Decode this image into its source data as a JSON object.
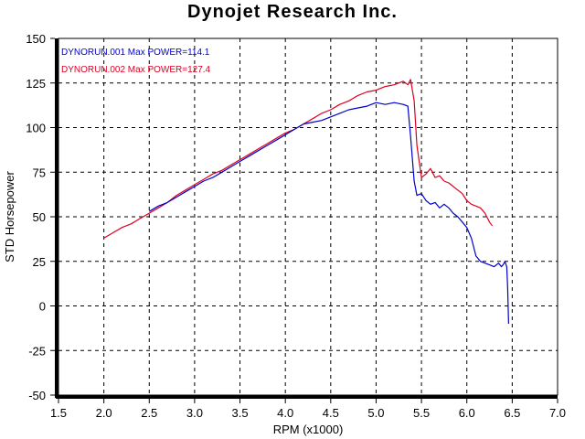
{
  "title": "Dynojet Research Inc.",
  "chart_data": {
    "type": "line",
    "title": "Dynojet Research Inc.",
    "xlabel": "RPM (x1000)",
    "ylabel": "STD Horsepower",
    "xlim": [
      1.5,
      7.0
    ],
    "ylim": [
      -50,
      150
    ],
    "xticks": [
      "1.5",
      "2.0",
      "2.5",
      "3.0",
      "3.5",
      "4.0",
      "4.5",
      "5.0",
      "5.5",
      "6.0",
      "6.5",
      "7.0"
    ],
    "yticks": [
      "-50",
      "-25",
      "0",
      "25",
      "50",
      "75",
      "100",
      "125",
      "150"
    ],
    "grid": true,
    "legend_position": "top-left",
    "series": [
      {
        "name": "DYNORUN.001",
        "legend_label": "DYNORUN.001  Max POWER=114.1",
        "color": "#0000cc",
        "x": [
          2.5,
          2.6,
          2.7,
          2.8,
          2.9,
          3.0,
          3.1,
          3.2,
          3.3,
          3.4,
          3.5,
          3.6,
          3.7,
          3.8,
          3.9,
          4.0,
          4.1,
          4.2,
          4.3,
          4.4,
          4.5,
          4.6,
          4.7,
          4.8,
          4.9,
          5.0,
          5.1,
          5.2,
          5.3,
          5.35,
          5.38,
          5.42,
          5.45,
          5.5,
          5.55,
          5.6,
          5.65,
          5.7,
          5.75,
          5.8,
          5.85,
          5.9,
          5.95,
          6.0,
          6.05,
          6.1,
          6.15,
          6.2,
          6.25,
          6.3,
          6.35,
          6.38,
          6.4,
          6.42,
          6.44,
          6.45,
          6.46
        ],
        "y": [
          53,
          56,
          58,
          61,
          64,
          67,
          70,
          72,
          75,
          78,
          81,
          84,
          87,
          90,
          93,
          96,
          99,
          102,
          103,
          104,
          106,
          108,
          110,
          111,
          112,
          114,
          113,
          114,
          113,
          112,
          95,
          70,
          62,
          63,
          59,
          57,
          58,
          55,
          57,
          55,
          52,
          50,
          47,
          44,
          38,
          28,
          25,
          24,
          23,
          22,
          24,
          22,
          23,
          25,
          22,
          10,
          -10
        ]
      },
      {
        "name": "DYNORUN.002",
        "legend_label": "DYNORUN.002  Max POWER=127.4",
        "color": "#dd0022",
        "x": [
          2.0,
          2.1,
          2.2,
          2.3,
          2.4,
          2.5,
          2.6,
          2.7,
          2.8,
          2.9,
          3.0,
          3.1,
          3.2,
          3.3,
          3.4,
          3.5,
          3.6,
          3.7,
          3.8,
          3.9,
          4.0,
          4.1,
          4.2,
          4.3,
          4.4,
          4.5,
          4.6,
          4.7,
          4.8,
          4.9,
          5.0,
          5.1,
          5.2,
          5.3,
          5.35,
          5.38,
          5.42,
          5.45,
          5.5,
          5.55,
          5.6,
          5.65,
          5.7,
          5.75,
          5.8,
          5.85,
          5.9,
          5.95,
          6.0,
          6.05,
          6.1,
          6.15,
          6.2,
          6.25,
          6.28
        ],
        "y": [
          38,
          41,
          44,
          46,
          49,
          52,
          55,
          58,
          62,
          65,
          68,
          71,
          74,
          76,
          79,
          82,
          85,
          88,
          91,
          94,
          97,
          99,
          102,
          105,
          108,
          110,
          113,
          115,
          118,
          120,
          121,
          123,
          124,
          126,
          124,
          127,
          115,
          90,
          72,
          74,
          77,
          72,
          73,
          70,
          69,
          67,
          65,
          63,
          59,
          57,
          56,
          55,
          52,
          47,
          45
        ]
      }
    ]
  }
}
